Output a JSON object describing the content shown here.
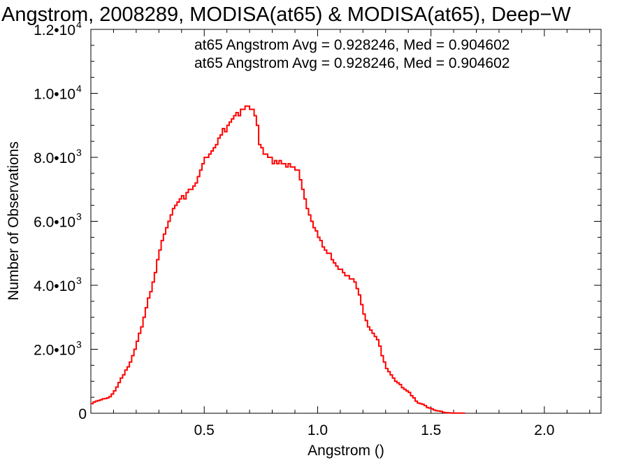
{
  "chart_data": {
    "type": "histogram-step",
    "title": "Angstrom, 2008289, MODISA(at65) & MODISA(at65), Deep−W",
    "xlabel": "Angstrom ()",
    "ylabel": "Number of Observations",
    "xlim": [
      0.0,
      2.25
    ],
    "ylim": [
      0,
      12000
    ],
    "x_ticks": [
      {
        "value": 0.5,
        "label": "0.5"
      },
      {
        "value": 1.0,
        "label": "1.0"
      },
      {
        "value": 1.5,
        "label": "1.5"
      },
      {
        "value": 2.0,
        "label": "2.0"
      }
    ],
    "y_ticks": [
      {
        "value": 0,
        "mant": "0",
        "exp": ""
      },
      {
        "value": 2000,
        "mant": "2.0•10",
        "exp": "3"
      },
      {
        "value": 4000,
        "mant": "4.0•10",
        "exp": "3"
      },
      {
        "value": 6000,
        "mant": "6.0•10",
        "exp": "3"
      },
      {
        "value": 8000,
        "mant": "8.0•10",
        "exp": "3"
      },
      {
        "value": 10000,
        "mant": "1.0•10",
        "exp": "4"
      },
      {
        "value": 12000,
        "mant": "1.2•10",
        "exp": "4"
      }
    ],
    "annotations": [
      {
        "text": "at65 Angstrom Avg = 0.928246, Med = 0.904602",
        "color": "#000000"
      },
      {
        "text": "at65 Angstrom Avg = 0.928246, Med = 0.904602",
        "color": "#ff0000"
      }
    ],
    "series": [
      {
        "color": "#ff0000",
        "step": 0.01,
        "x_start": 0.0,
        "values": [
          300,
          350,
          380,
          400,
          420,
          450,
          460,
          480,
          520,
          600,
          700,
          820,
          960,
          1100,
          1200,
          1350,
          1450,
          1600,
          1800,
          2000,
          2250,
          2500,
          2700,
          3000,
          3300,
          3600,
          3800,
          4100,
          4400,
          4800,
          5100,
          5400,
          5600,
          5800,
          6000,
          6200,
          6400,
          6500,
          6600,
          6700,
          6800,
          6700,
          6900,
          7000,
          7000,
          7100,
          7200,
          7400,
          7600,
          7800,
          8000,
          8000,
          8100,
          8200,
          8300,
          8400,
          8600,
          8700,
          8900,
          8800,
          9000,
          9100,
          9200,
          9300,
          9400,
          9300,
          9500,
          9500,
          9600,
          9600,
          9500,
          9500,
          9300,
          9000,
          8400,
          8300,
          8100,
          8100,
          8000,
          8000,
          7800,
          7900,
          7800,
          7900,
          7800,
          7800,
          7700,
          7800,
          7700,
          7700,
          7600,
          7600,
          7300,
          7000,
          6700,
          6400,
          6200,
          6000,
          5800,
          5700,
          5500,
          5400,
          5200,
          5100,
          5000,
          5000,
          4800,
          4700,
          4600,
          4500,
          4500,
          4400,
          4300,
          4300,
          4200,
          4200,
          4100,
          3900,
          3700,
          3400,
          3100,
          2900,
          2700,
          2600,
          2500,
          2400,
          2300,
          2100,
          1800,
          1600,
          1400,
          1300,
          1200,
          1100,
          1000,
          950,
          900,
          800,
          750,
          700,
          650,
          550,
          480,
          380,
          320,
          300,
          280,
          240,
          180,
          160,
          140,
          100,
          80,
          70,
          60,
          30,
          20,
          15,
          10,
          5,
          5,
          5,
          5,
          5,
          5
        ]
      }
    ]
  }
}
